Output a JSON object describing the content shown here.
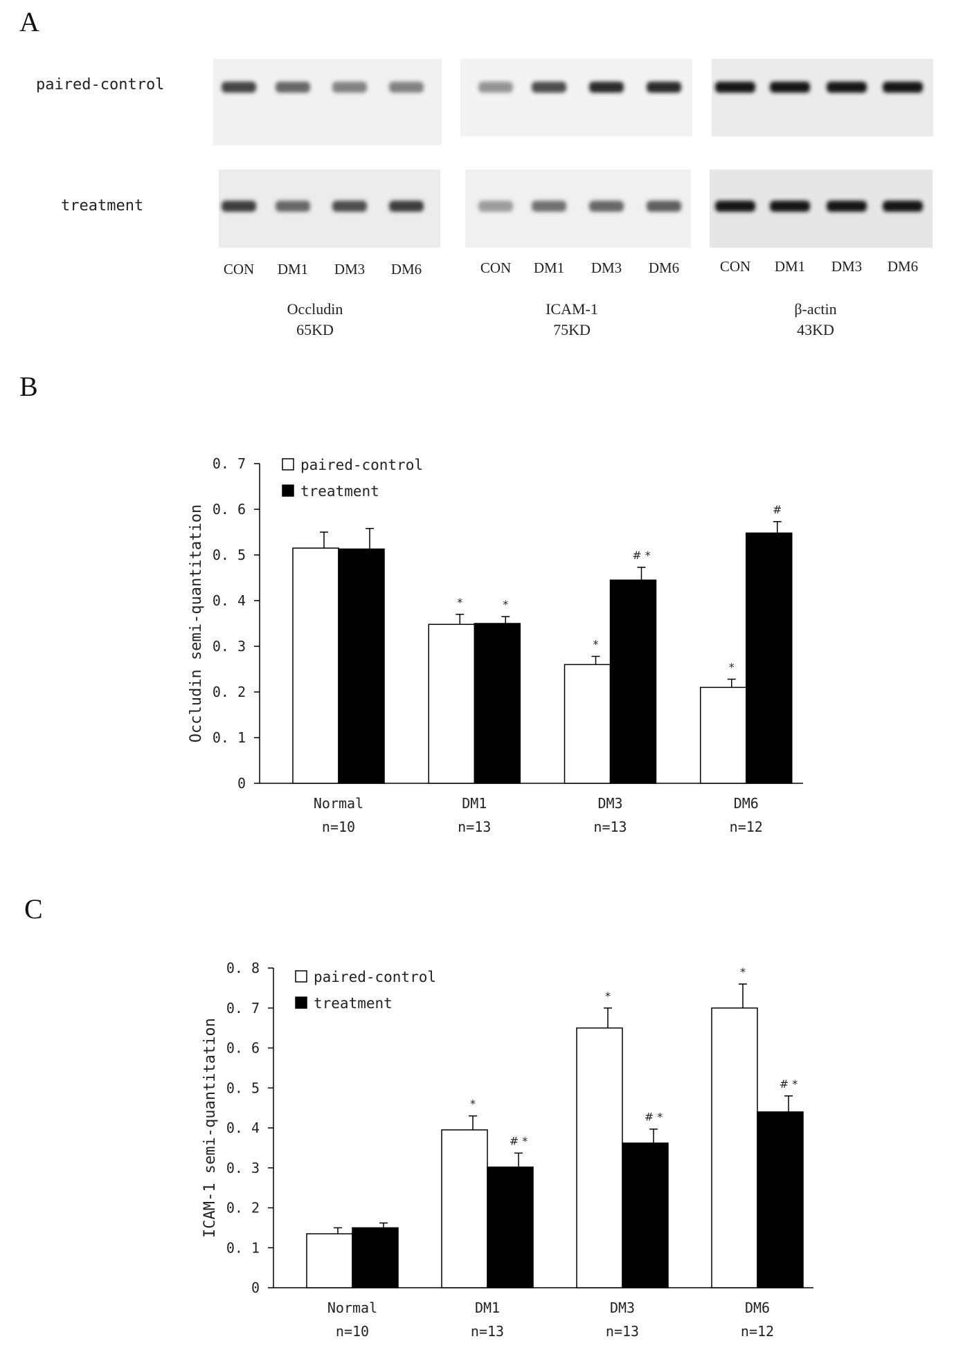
{
  "panels": {
    "a": "A",
    "b": "B",
    "c": "C"
  },
  "blot": {
    "row_labels": [
      "paired-control",
      "treatment"
    ],
    "groups": [
      {
        "lanes": [
          "CON",
          "DM1",
          "DM3",
          "DM6"
        ],
        "name": "Occludin",
        "weight": "65KD",
        "band_intensity": {
          "paired-control": [
            0.75,
            0.55,
            0.4,
            0.4
          ],
          "treatment": [
            0.8,
            0.55,
            0.7,
            0.8
          ]
        }
      },
      {
        "lanes": [
          "CON",
          "DM1",
          "DM3",
          "DM6"
        ],
        "name": "ICAM-1",
        "weight": "75KD",
        "band_intensity": {
          "paired-control": [
            0.3,
            0.7,
            0.9,
            0.9
          ],
          "treatment": [
            0.25,
            0.5,
            0.55,
            0.6
          ]
        }
      },
      {
        "lanes": [
          "CON",
          "DM1",
          "DM3",
          "DM6"
        ],
        "name": "β-actin",
        "weight": "43KD",
        "band_intensity": {
          "paired-control": [
            1,
            1,
            1,
            1
          ],
          "treatment": [
            1,
            1,
            1,
            1
          ]
        }
      }
    ]
  },
  "chart_data": [
    {
      "type": "bar",
      "panel": "B",
      "categories": [
        "Normal",
        "DM1",
        "DM3",
        "DM6"
      ],
      "category_n": [
        "n=10",
        "n=13",
        "n=13",
        "n=12"
      ],
      "ylabel": "Occludin semi-quantitation",
      "ylim": [
        0,
        0.7
      ],
      "yticks": [
        "0",
        "0.1",
        "0.2",
        "0.3",
        "0.4",
        "0.5",
        "0.6",
        "0.7"
      ],
      "legend_position": "top-left",
      "series": [
        {
          "name": "paired-control",
          "color": "#ffffff",
          "values": [
            0.515,
            0.348,
            0.26,
            0.21
          ],
          "errors": [
            0.035,
            0.022,
            0.018,
            0.018
          ],
          "marks": [
            "",
            "*",
            "*",
            "*"
          ]
        },
        {
          "name": "treatment",
          "color": "#000000",
          "values": [
            0.513,
            0.35,
            0.445,
            0.548
          ],
          "errors": [
            0.045,
            0.015,
            0.028,
            0.025
          ],
          "marks": [
            "",
            "*",
            "# *",
            "#"
          ]
        }
      ]
    },
    {
      "type": "bar",
      "panel": "C",
      "categories": [
        "Normal",
        "DM1",
        "DM3",
        "DM6"
      ],
      "category_n": [
        "n=10",
        "n=13",
        "n=13",
        "n=12"
      ],
      "ylabel": "ICAM-1 semi-quantitation",
      "ylim": [
        0,
        0.8
      ],
      "yticks": [
        "0",
        "0.1",
        "0.2",
        "0.3",
        "0.4",
        "0.5",
        "0.6",
        "0.7",
        "0.8"
      ],
      "legend_position": "top-left",
      "series": [
        {
          "name": "paired-control",
          "color": "#ffffff",
          "values": [
            0.135,
            0.395,
            0.65,
            0.7
          ],
          "errors": [
            0.015,
            0.035,
            0.05,
            0.06
          ],
          "marks": [
            "",
            "*",
            "*",
            "*"
          ]
        },
        {
          "name": "treatment",
          "color": "#000000",
          "values": [
            0.15,
            0.302,
            0.362,
            0.44
          ],
          "errors": [
            0.012,
            0.035,
            0.035,
            0.04
          ],
          "marks": [
            "",
            "# *",
            "# *",
            "# *"
          ]
        }
      ]
    }
  ]
}
